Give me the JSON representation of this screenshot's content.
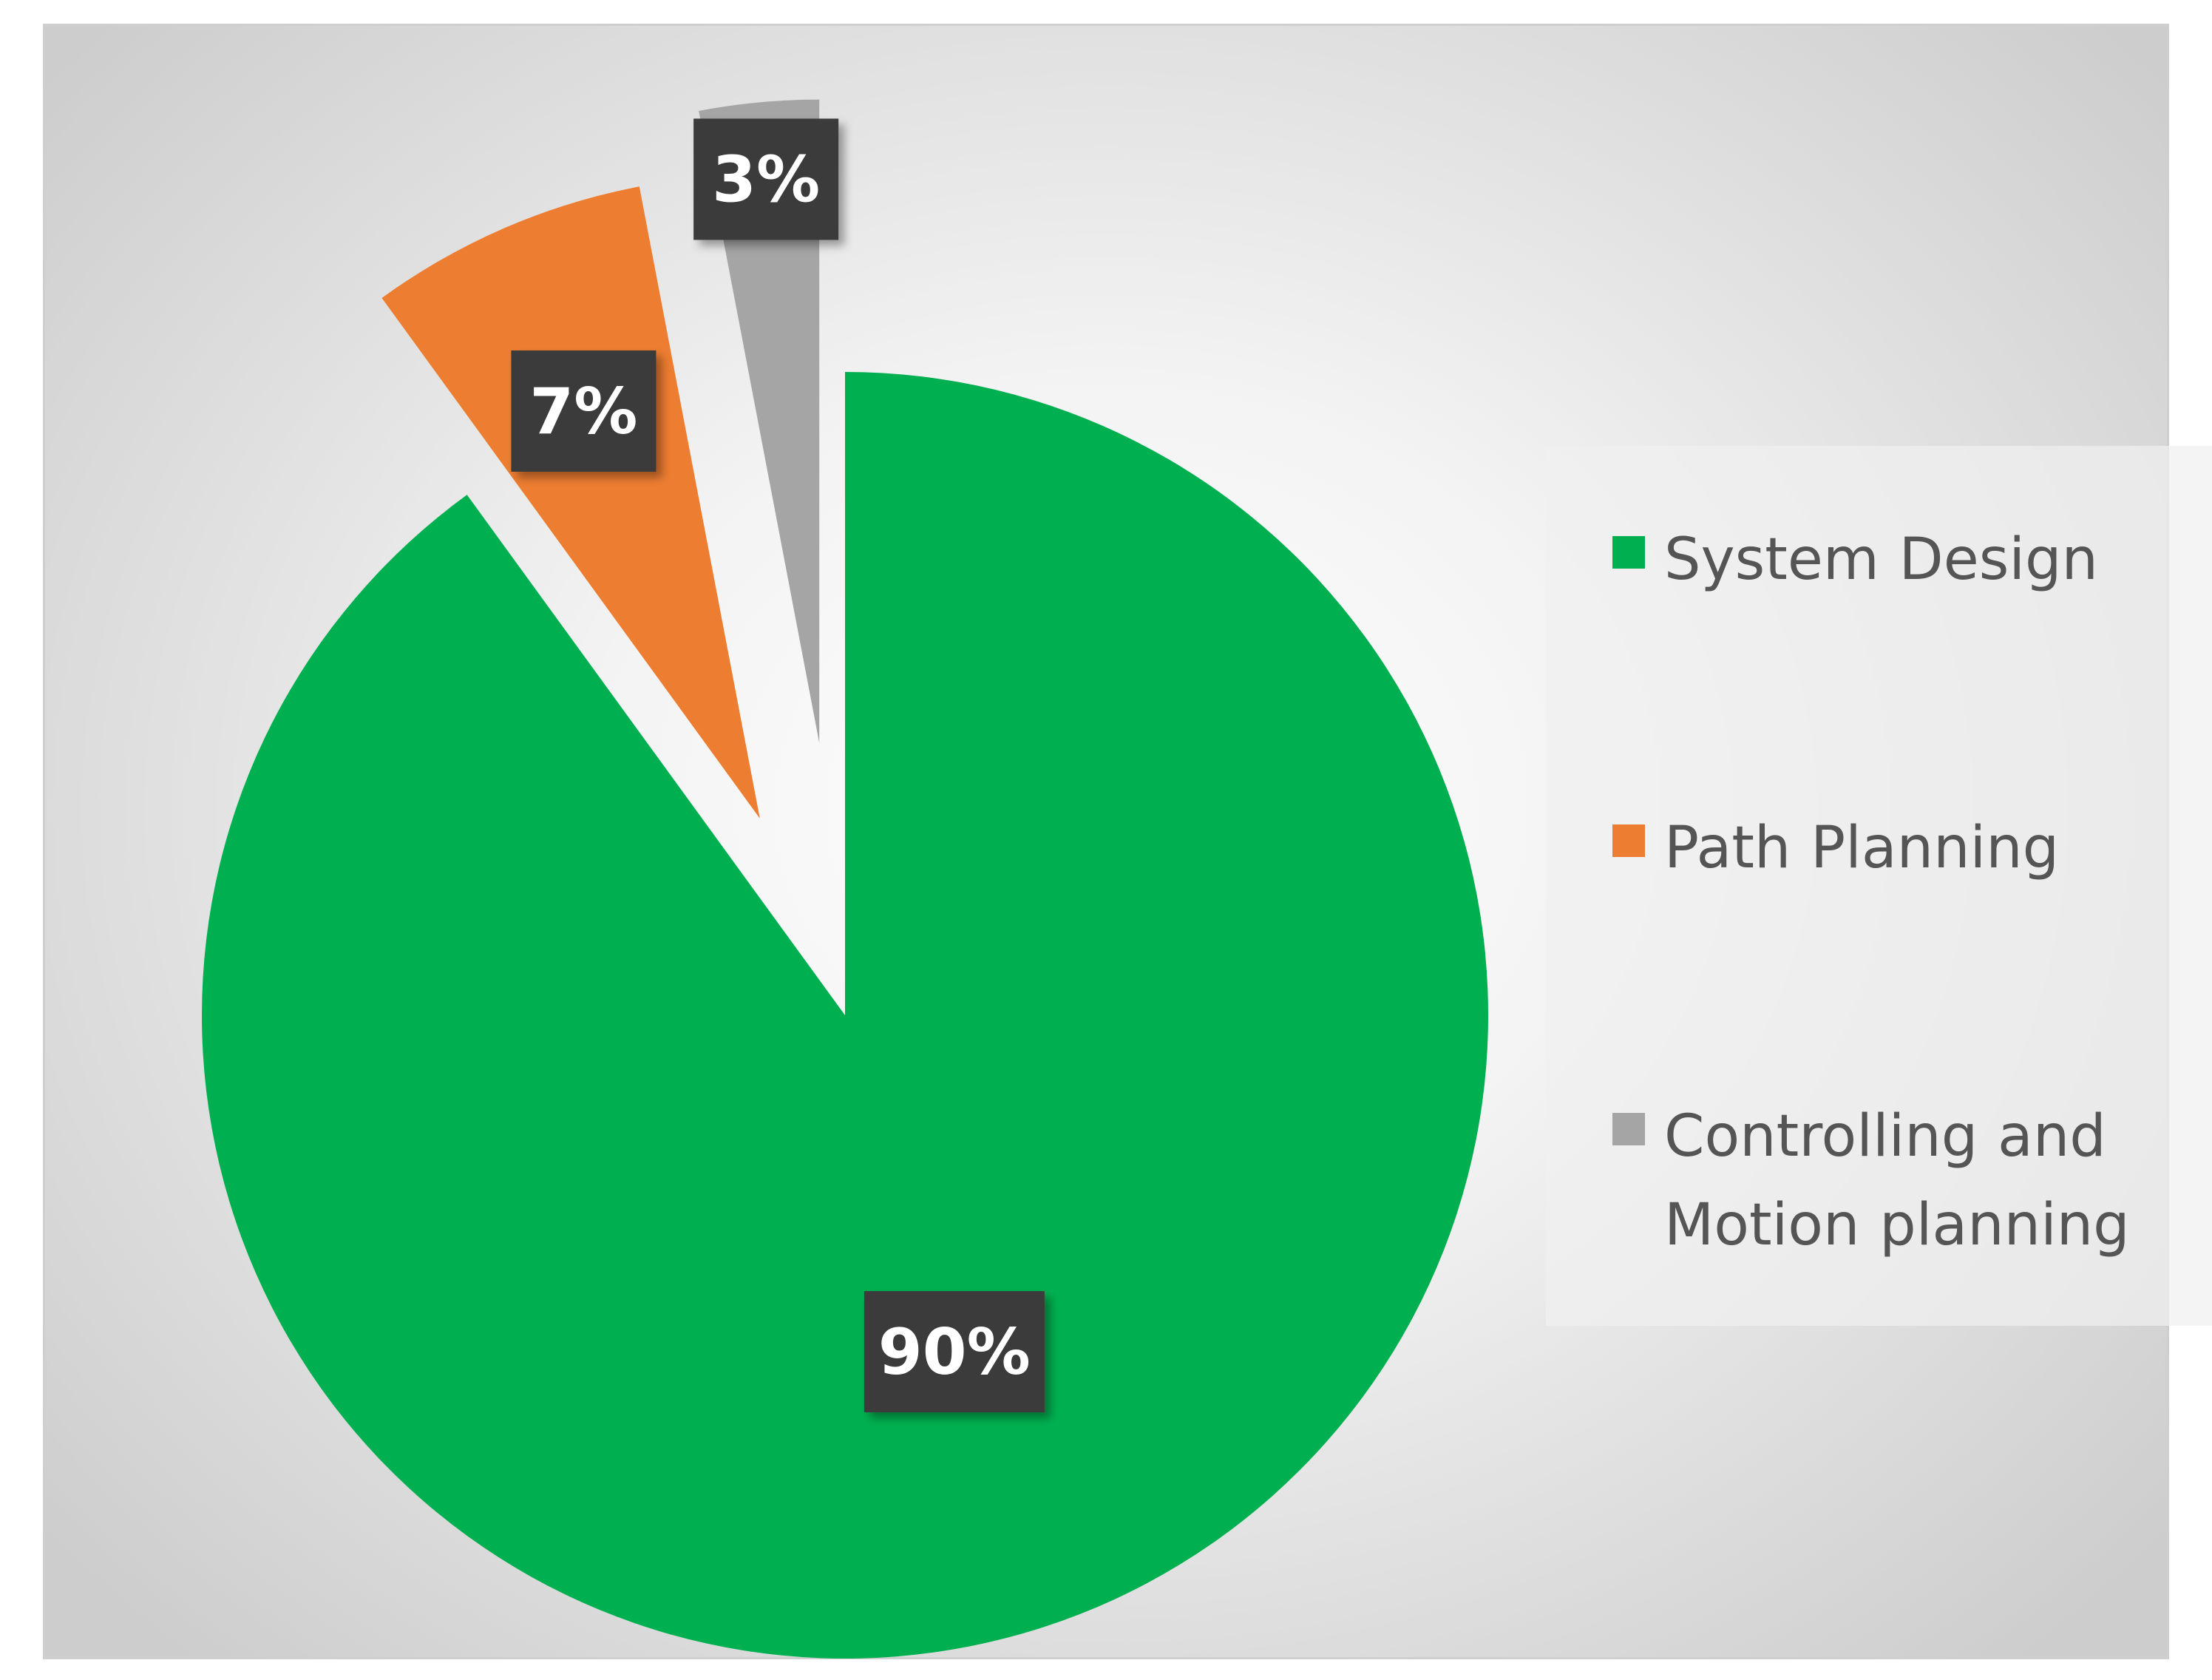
{
  "chart_data": {
    "type": "pie",
    "title": "",
    "slices": [
      {
        "label": "System Design",
        "value": 90,
        "color": "#00B050"
      },
      {
        "label": "Path Planning",
        "value": 7,
        "color": "#ED7D31"
      },
      {
        "label": "Controlling and Motion planning",
        "value": 3,
        "color": "#A5A5A5"
      }
    ],
    "data_labels": [
      "90%",
      "7%",
      "3%"
    ],
    "start_angle_deg": 0,
    "direction": "clockwise",
    "exploded": true,
    "legend": {
      "placement": "right",
      "entries": [
        "System Design",
        "Path Planning",
        "Controlling and Motion planning"
      ]
    }
  }
}
